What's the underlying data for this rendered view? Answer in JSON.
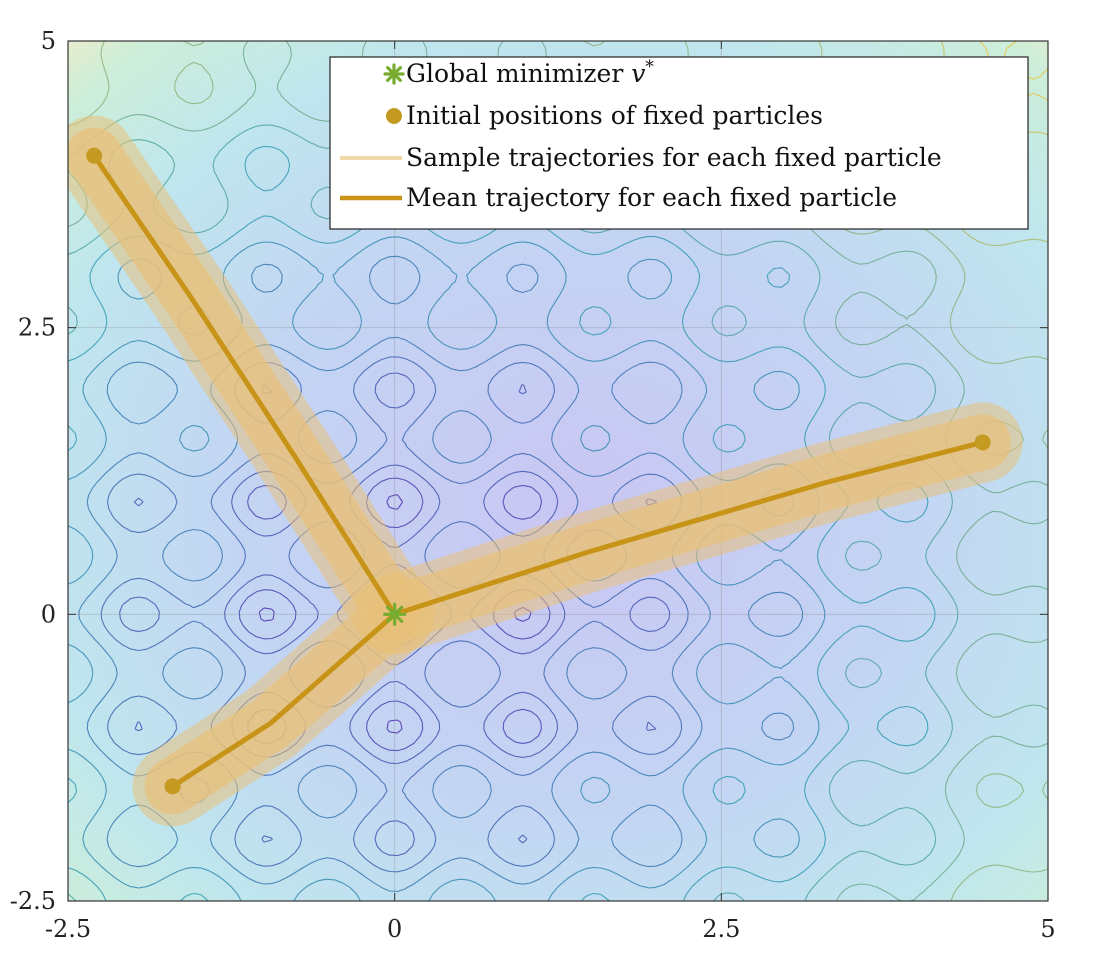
{
  "chart_data": {
    "type": "line",
    "title": "",
    "xlabel": "",
    "ylabel": "",
    "xlim": [
      -2.5,
      5
    ],
    "ylim": [
      -2.5,
      5
    ],
    "xticks": [
      "-2.5",
      "0",
      "2.5",
      "5"
    ],
    "yticks": [
      "-2.5",
      "0",
      "2.5",
      "5"
    ],
    "grid": true,
    "legend_position": "top-right",
    "background": "contour plot of a Rastrigin-type objective function, minimum at the origin",
    "legend": [
      {
        "key": "minimizer",
        "label_text": "Global minimizer ",
        "label_math": "v",
        "label_sup": "*"
      },
      {
        "key": "initial",
        "label_text": "Initial positions of fixed particles"
      },
      {
        "key": "samples",
        "label_text": "Sample trajectories for each fixed particle"
      },
      {
        "key": "mean",
        "label_text": "Mean trajectory for each fixed particle"
      }
    ],
    "global_minimizer": {
      "x": 0,
      "y": 0
    },
    "fixed_particles": [
      {
        "x": -2.3,
        "y": 4.0
      },
      {
        "x": -1.7,
        "y": -1.5
      },
      {
        "x": 4.5,
        "y": 1.5
      }
    ],
    "mean_trajectories": [
      {
        "points": [
          [
            -2.3,
            4.0
          ],
          [
            -1.55,
            2.75
          ],
          [
            -0.75,
            1.35
          ],
          [
            0,
            0
          ]
        ]
      },
      {
        "points": [
          [
            -1.7,
            -1.5
          ],
          [
            -0.95,
            -0.95
          ],
          [
            -0.45,
            -0.45
          ],
          [
            0,
            0
          ]
        ]
      },
      {
        "points": [
          [
            4.5,
            1.5
          ],
          [
            3.3,
            1.15
          ],
          [
            1.5,
            0.55
          ],
          [
            0,
            0
          ]
        ]
      }
    ],
    "colors": {
      "minimizer": "#77ac30",
      "particle": "#c49a21",
      "mean_line": "#c89418",
      "sample_band": "#e8c17c",
      "legend_sample_line": "#f1d9a8",
      "contour_low": "#4a2fb0",
      "contour_mid": "#2f9bb0",
      "contour_high": "#e8c640"
    }
  }
}
